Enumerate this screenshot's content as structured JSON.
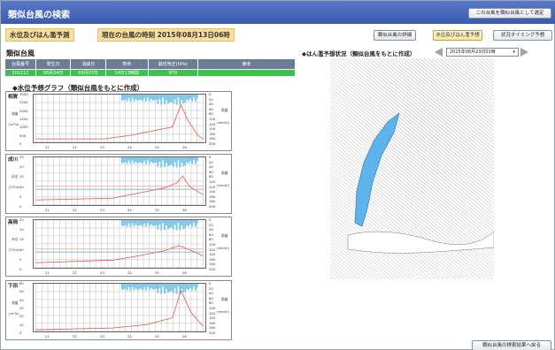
{
  "header": {
    "title": "類似台風の検索",
    "set_button": "この台風を類似台風として選定"
  },
  "label": {
    "mode": "水位及びはん濫予測",
    "current": "現在の台風の時刻 2015年08月13日06時"
  },
  "toolbar": {
    "detail": "類似台風の詳細",
    "water": "水位及びはん濫予想",
    "timing": "状況タイミング予想"
  },
  "similar": {
    "title": "類似台風",
    "columns": [
      "台風番号",
      "発生日",
      "消滅日",
      "寿命",
      "最低気圧(hPa)",
      "備考"
    ],
    "row": [
      "201112",
      "08月24日",
      "09月07日",
      "14日13時間",
      "970",
      ""
    ]
  },
  "graphs_title": "◆水位予想グラフ（類似台風をもとに作成）",
  "map": {
    "title": "◆はん濫予想状況（類似台風をもとに作成）",
    "time": "2015年08月23日01時"
  },
  "back_button": "類似台風の検索結果へ戻る",
  "stations": [
    {
      "name": "相賀",
      "ylabel": "流量",
      "unit": "(m³/s)",
      "yticks": [
        "3000",
        "2500",
        "2000",
        "1500",
        "1000",
        "500",
        "0"
      ]
    },
    {
      "name": "成川",
      "ylabel": "水位",
      "unit": "(T.P.m)",
      "yticks": [
        "25",
        "20",
        "15",
        "10",
        "5",
        "0"
      ]
    },
    {
      "name": "高岡",
      "ylabel": "水位",
      "unit": "(T.P.m)",
      "yticks": [
        "25",
        "20",
        "15",
        "10",
        "5",
        "0"
      ]
    },
    {
      "name": "下田",
      "ylabel": "流量",
      "unit": "(m³/s)",
      "yticks": [
        "60",
        "50",
        "40",
        "30",
        "20",
        "10",
        "0"
      ]
    }
  ],
  "rain_axis": {
    "label": "雨量",
    "unit": "(mm/h)",
    "ticks": [
      "0",
      "20",
      "40",
      "60",
      "80",
      "100",
      "120",
      "140",
      "160",
      "180",
      "200"
    ]
  },
  "xticks": [
    "21",
    "22",
    "23",
    "24",
    "25",
    "26"
  ],
  "colors": {
    "title_bar": "#4565bd",
    "accent": "#fddf9c",
    "table_head": "#6d7c95",
    "table_row": "#39c34b",
    "rain": "#7ec8e8",
    "water": "#e8504a",
    "flood": "#5fb3ec"
  }
}
